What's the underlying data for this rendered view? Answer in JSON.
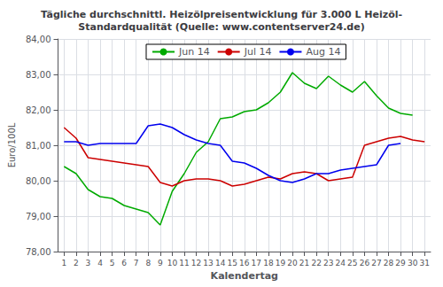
{
  "chart_data": {
    "type": "line",
    "title": "Tägliche durchschnittl. Heizölpreisentwicklung für 3.000 L Heizöl-\nStandardqualität (Quelle: www.contentserver24.de)",
    "x_label": "Kalendertag",
    "y_label": "Euro/100L",
    "x": [
      1,
      2,
      3,
      4,
      5,
      6,
      7,
      8,
      9,
      10,
      11,
      12,
      13,
      14,
      15,
      16,
      17,
      18,
      19,
      20,
      21,
      22,
      23,
      24,
      25,
      26,
      27,
      28,
      29,
      30,
      31
    ],
    "xlim": [
      0.5,
      31.5
    ],
    "xticks": [
      1,
      2,
      3,
      4,
      5,
      6,
      7,
      8,
      9,
      10,
      11,
      12,
      13,
      14,
      15,
      16,
      17,
      18,
      19,
      20,
      21,
      22,
      23,
      24,
      25,
      26,
      27,
      28,
      29,
      30,
      31
    ],
    "ylim": [
      78.0,
      84.0
    ],
    "yticks": [
      {
        "value": 78.0,
        "label": "78,00"
      },
      {
        "value": 79.0,
        "label": "79,00"
      },
      {
        "value": 80.0,
        "label": "80,00"
      },
      {
        "value": 81.0,
        "label": "81,00"
      },
      {
        "value": 82.0,
        "label": "82,00"
      },
      {
        "value": 83.0,
        "label": "83,00"
      },
      {
        "value": 84.0,
        "label": "84,00"
      }
    ],
    "grid": true,
    "legend": "upper left",
    "series": [
      {
        "name": "Jun 14",
        "color": "#00AA00",
        "values": [
          80.4,
          80.2,
          79.75,
          79.55,
          79.5,
          79.3,
          79.2,
          79.1,
          78.75,
          79.7,
          80.2,
          80.8,
          81.1,
          81.75,
          81.8,
          81.95,
          82.0,
          82.2,
          82.5,
          83.05,
          82.75,
          82.6,
          82.95,
          82.7,
          82.5,
          82.8,
          82.4,
          82.05,
          81.9,
          81.85,
          null
        ]
      },
      {
        "name": "Jul 14",
        "color": "#CC0000",
        "values": [
          81.5,
          81.2,
          80.65,
          80.6,
          80.55,
          80.5,
          80.45,
          80.4,
          79.95,
          79.85,
          80.0,
          80.05,
          80.05,
          80.0,
          79.85,
          79.9,
          80.0,
          80.1,
          80.05,
          80.2,
          80.25,
          80.2,
          80.0,
          80.05,
          80.1,
          81.0,
          81.1,
          81.2,
          81.25,
          81.15,
          81.1
        ]
      },
      {
        "name": "Aug 14",
        "color": "#0000EE",
        "values": [
          81.1,
          81.1,
          81.0,
          81.05,
          81.05,
          81.05,
          81.05,
          81.55,
          81.6,
          81.5,
          81.3,
          81.15,
          81.05,
          81.0,
          80.55,
          80.5,
          80.35,
          80.15,
          80.0,
          79.95,
          80.05,
          80.2,
          80.2,
          80.3,
          80.35,
          80.4,
          80.45,
          81.0,
          81.05,
          null,
          null
        ]
      }
    ]
  }
}
